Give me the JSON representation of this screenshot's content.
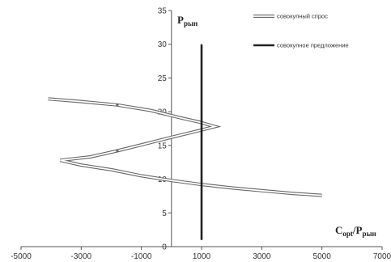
{
  "chart_data": {
    "type": "line",
    "xlim": [
      -5000,
      7000
    ],
    "ylim": [
      0,
      35
    ],
    "x_ticks": [
      -5000,
      -3000,
      -1000,
      1000,
      3000,
      5000,
      7000
    ],
    "y_ticks": [
      0,
      5,
      10,
      15,
      20,
      25,
      30,
      35
    ],
    "grid": false,
    "legend_position": "top-right",
    "y_axis_title": {
      "main": "P",
      "sub": "рын"
    },
    "x_axis_title": {
      "main": "C",
      "sub1": "opt",
      "sep": "/P",
      "sub2": "рын"
    },
    "series": [
      {
        "name": "совокупный спрос",
        "style": "double-line",
        "color": "#666666",
        "points": [
          [
            -4100,
            21.9
          ],
          [
            -3000,
            21.5
          ],
          [
            -1800,
            21.0
          ],
          [
            -700,
            20.2
          ],
          [
            300,
            19.1
          ],
          [
            900,
            18.5
          ],
          [
            1450,
            17.8
          ],
          [
            1000,
            17.3
          ],
          [
            0,
            16.2
          ],
          [
            -900,
            15.2
          ],
          [
            -1800,
            14.2
          ],
          [
            -2700,
            13.3
          ],
          [
            -3700,
            12.8
          ],
          [
            -3000,
            12.1
          ],
          [
            -2000,
            11.4
          ],
          [
            -1000,
            10.5
          ],
          [
            0,
            9.8
          ],
          [
            1000,
            9.2
          ],
          [
            2000,
            8.7
          ],
          [
            3000,
            8.3
          ],
          [
            4000,
            7.9
          ],
          [
            5000,
            7.6
          ]
        ],
        "markers": [
          [
            -1800,
            21.0
          ],
          [
            -1800,
            14.2
          ]
        ]
      },
      {
        "name": "совокупное предложение",
        "style": "solid",
        "color": "#222222",
        "points": [
          [
            1000,
            1
          ],
          [
            1000,
            30
          ]
        ]
      }
    ]
  }
}
